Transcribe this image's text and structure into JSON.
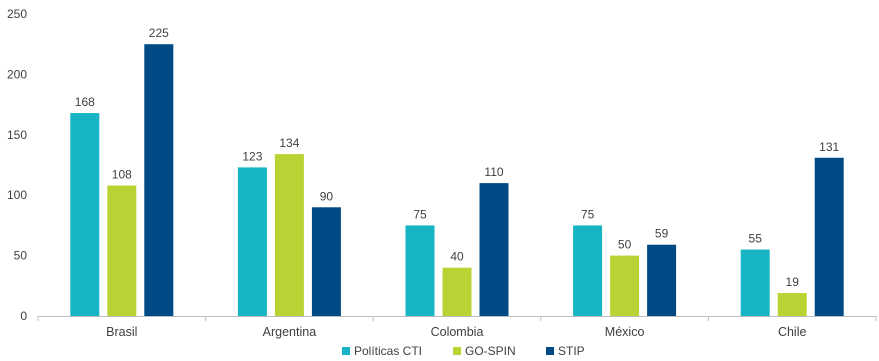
{
  "chart_data": {
    "type": "bar",
    "categories": [
      "Brasil",
      "Argentina",
      "Colombia",
      "México",
      "Chile"
    ],
    "series": [
      {
        "name": "Políticas CTI",
        "color": "#17B5C3",
        "values": [
          168,
          123,
          75,
          75,
          55
        ]
      },
      {
        "name": "GO-SPIN",
        "color": "#B9D334",
        "values": [
          108,
          134,
          40,
          50,
          19
        ]
      },
      {
        "name": "STIP",
        "color": "#004B85",
        "values": [
          225,
          90,
          110,
          59,
          131
        ]
      }
    ],
    "yticks": [
      0,
      50,
      100,
      150,
      200,
      250
    ],
    "ylim": [
      0,
      250
    ],
    "grid": false,
    "legend": "bottom",
    "title": "",
    "xlabel": "",
    "ylabel": ""
  }
}
